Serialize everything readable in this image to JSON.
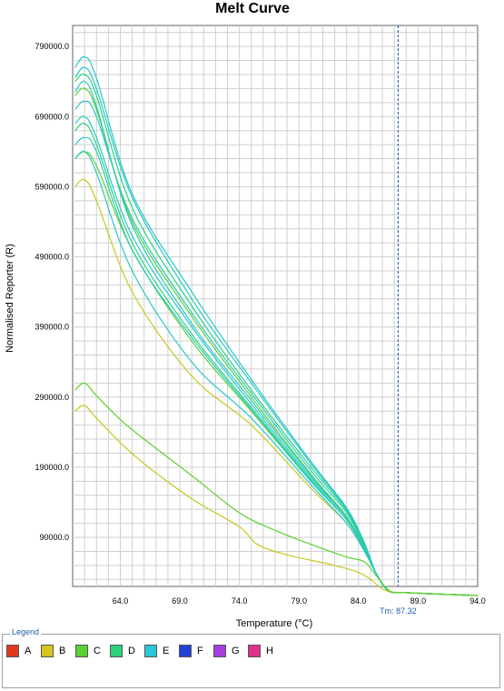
{
  "chart_data": {
    "type": "line",
    "title": "Melt Curve",
    "xlabel": "Temperature (°C)",
    "ylabel": "Normalised Reporter (R)",
    "x_ticks": [
      "64.0",
      "69.0",
      "74.0",
      "79.0",
      "84.0",
      "89.0",
      "94.0"
    ],
    "y_ticks": [
      "790000.0",
      "690000.0",
      "590000.0",
      "490000.0",
      "390000.0",
      "290000.0",
      "190000.0",
      "90000.0"
    ],
    "xlim": [
      60.0,
      94.0
    ],
    "tm_label": "Tm: 87.32",
    "tm_value": 87.32,
    "grid": true,
    "series": [
      {
        "color": "#c8c820",
        "x": [
          60.2,
          61,
          62,
          65,
          70,
          75,
          80,
          83,
          84.5,
          85.5,
          86.5,
          88,
          94
        ],
        "y": [
          590000,
          600000,
          570000,
          440000,
          320000,
          250000,
          160000,
          110000,
          70000,
          38000,
          14000,
          11000,
          7000
        ]
      },
      {
        "color": "#5ad232",
        "x": [
          60.2,
          61,
          62,
          65,
          70,
          75,
          80,
          83,
          84.5,
          85.5,
          86.5,
          88,
          94
        ],
        "y": [
          630000,
          640000,
          620000,
          500000,
          370000,
          270000,
          170000,
          115000,
          72000,
          38000,
          14000,
          11000,
          7000
        ]
      },
      {
        "color": "#28c8c8",
        "x": [
          60.2,
          61,
          62,
          65,
          70,
          75,
          80,
          83,
          84.5,
          85.5,
          86.5,
          88,
          94
        ],
        "y": [
          630000,
          640000,
          610000,
          470000,
          340000,
          260000,
          165000,
          110000,
          70000,
          38000,
          14000,
          11000,
          7000
        ]
      },
      {
        "color": "#28c8c8",
        "x": [
          60.2,
          61,
          62,
          65,
          70,
          75,
          80,
          83,
          84.5,
          85.5,
          86.5,
          88,
          94
        ],
        "y": [
          680000,
          690000,
          660000,
          520000,
          390000,
          280000,
          175000,
          118000,
          74000,
          38000,
          14000,
          11000,
          7000
        ]
      },
      {
        "color": "#2ad27a",
        "x": [
          60.2,
          61,
          62,
          65,
          70,
          75,
          80,
          83,
          84.5,
          85.5,
          86.5,
          88,
          94
        ],
        "y": [
          670000,
          680000,
          650000,
          510000,
          380000,
          275000,
          172000,
          115000,
          72000,
          38000,
          14000,
          11000,
          7000
        ]
      },
      {
        "color": "#28c8c8",
        "x": [
          60.2,
          61,
          62,
          65,
          70,
          75,
          80,
          83,
          84.5,
          85.5,
          86.5,
          88,
          94
        ],
        "y": [
          700000,
          712000,
          690000,
          545000,
          410000,
          295000,
          185000,
          125000,
          76000,
          38000,
          14000,
          11000,
          7000
        ]
      },
      {
        "color": "#5ad232",
        "x": [
          60.2,
          61,
          62,
          65,
          70,
          75,
          80,
          83,
          84.5,
          85.5,
          86.5,
          88,
          94
        ],
        "y": [
          720000,
          730000,
          700000,
          540000,
          405000,
          290000,
          180000,
          120000,
          74000,
          38000,
          14000,
          11000,
          7000
        ]
      },
      {
        "color": "#28c8c8",
        "x": [
          60.2,
          61,
          62,
          65,
          70,
          75,
          80,
          83,
          84.5,
          85.5,
          86.5,
          88,
          94
        ],
        "y": [
          725000,
          740000,
          705000,
          535000,
          395000,
          285000,
          178000,
          118000,
          73000,
          38000,
          14000,
          11000,
          7000
        ]
      },
      {
        "color": "#28c8c8",
        "x": [
          60.2,
          61,
          62,
          65,
          70,
          75,
          80,
          83,
          84.5,
          85.5,
          86.5,
          88,
          94
        ],
        "y": [
          650000,
          660000,
          640000,
          500000,
          375000,
          272000,
          170000,
          115000,
          72000,
          38000,
          14000,
          11000,
          7000
        ]
      },
      {
        "color": "#2ad27a",
        "x": [
          60.2,
          61,
          62,
          65,
          70,
          75,
          80,
          83,
          84.5,
          85.5,
          86.5,
          88,
          94
        ],
        "y": [
          740000,
          750000,
          720000,
          560000,
          420000,
          300000,
          190000,
          128000,
          78000,
          38000,
          14000,
          11000,
          7000
        ]
      },
      {
        "color": "#28c8c8",
        "x": [
          60.2,
          61,
          62,
          65,
          70,
          75,
          80,
          83,
          84.5,
          85.5,
          86.5,
          88,
          94
        ],
        "y": [
          745000,
          760000,
          730000,
          575000,
          430000,
          310000,
          195000,
          130000,
          80000,
          38000,
          14000,
          11000,
          7000
        ]
      },
      {
        "color": "#28c8c8",
        "x": [
          60.2,
          61,
          62,
          65,
          70,
          75,
          80,
          83,
          84.5,
          85.5,
          86.5,
          88,
          94
        ],
        "y": [
          760000,
          775000,
          745000,
          580000,
          440000,
          315000,
          198000,
          132000,
          82000,
          38000,
          14000,
          11000,
          7000
        ]
      },
      {
        "color": "#c8c820",
        "x": [
          60.2,
          61,
          62,
          64,
          66,
          70,
          74,
          75.5,
          78,
          82,
          84,
          85,
          86.3,
          88,
          94
        ],
        "y": [
          270000,
          278000,
          260000,
          225000,
          195000,
          145000,
          105000,
          80000,
          65000,
          50000,
          40000,
          30000,
          14000,
          11000,
          7000
        ]
      },
      {
        "color": "#5ad232",
        "x": [
          60.2,
          61,
          62,
          64,
          66,
          70,
          74,
          77,
          80,
          83,
          84.5,
          85.5,
          86.6,
          88,
          94
        ],
        "y": [
          300000,
          310000,
          292000,
          258000,
          230000,
          178000,
          125000,
          100000,
          80000,
          62000,
          55000,
          35000,
          14000,
          11000,
          7000
        ]
      }
    ]
  },
  "legend": {
    "title": "Legend",
    "items": [
      {
        "label": "A",
        "color": "#e03a1e"
      },
      {
        "label": "B",
        "color": "#d7c31f"
      },
      {
        "label": "C",
        "color": "#5ad232"
      },
      {
        "label": "D",
        "color": "#2ad27a"
      },
      {
        "label": "E",
        "color": "#28c8d8"
      },
      {
        "label": "F",
        "color": "#2340d8"
      },
      {
        "label": "G",
        "color": "#a43ee0"
      },
      {
        "label": "H",
        "color": "#e0308a"
      }
    ]
  }
}
